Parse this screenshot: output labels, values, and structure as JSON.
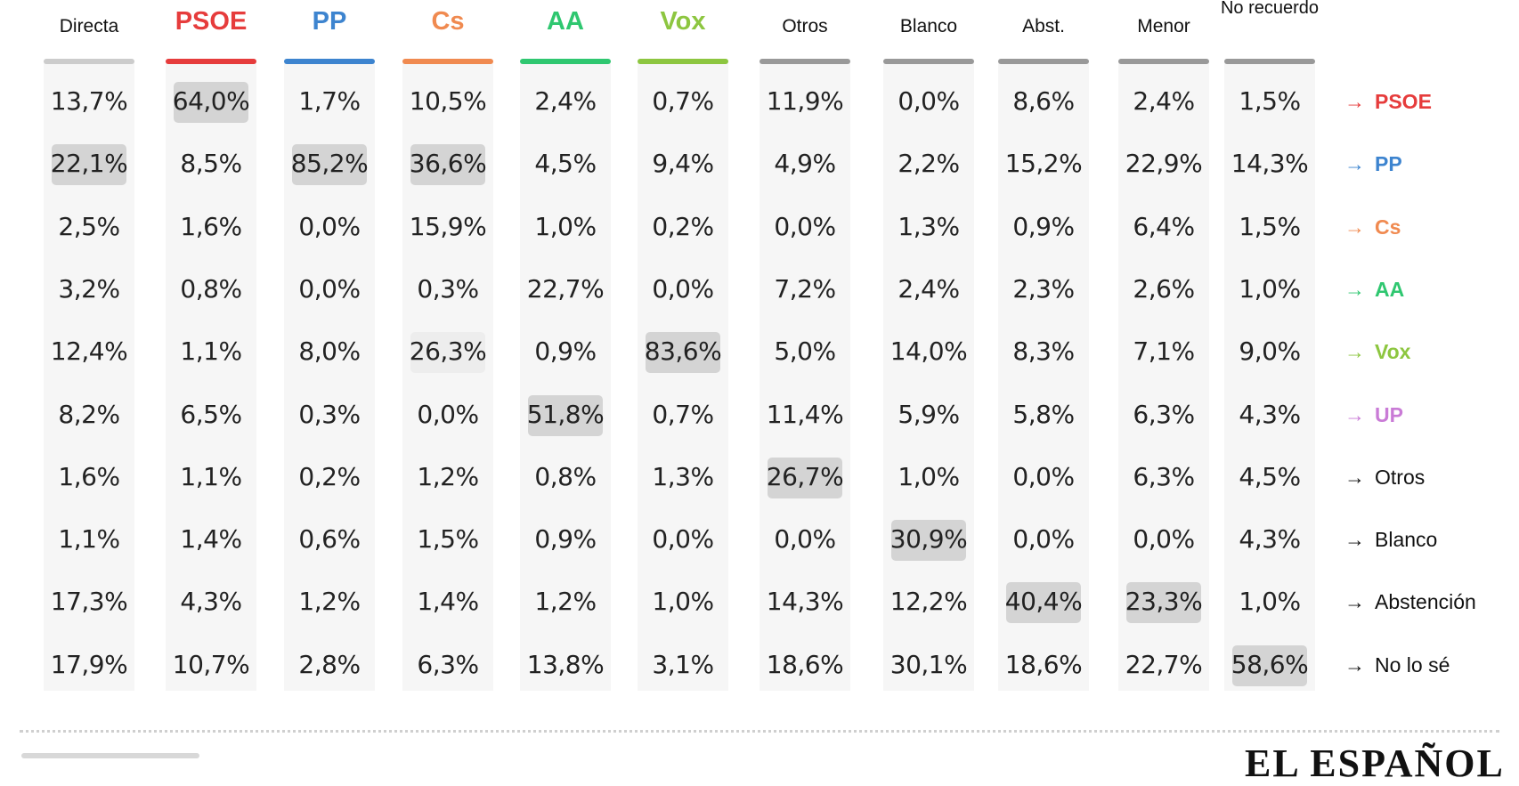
{
  "chart_data": {
    "type": "table",
    "columns": [
      {
        "label": "Directa",
        "color": "#cccccc",
        "style": "other"
      },
      {
        "label": "PSOE",
        "color": "#e63c3c",
        "style": "party"
      },
      {
        "label": "PP",
        "color": "#3d84cf",
        "style": "party"
      },
      {
        "label": "Cs",
        "color": "#f08a50",
        "style": "party"
      },
      {
        "label": "AA",
        "color": "#2fc770",
        "style": "party"
      },
      {
        "label": "Vox",
        "color": "#8dc640",
        "style": "party"
      },
      {
        "label": "Otros",
        "color": "#999999",
        "style": "other"
      },
      {
        "label": "Blanco",
        "color": "#999999",
        "style": "other"
      },
      {
        "label": "Abst.",
        "color": "#999999",
        "style": "other"
      },
      {
        "label": "Menor",
        "color": "#999999",
        "style": "other"
      },
      {
        "label": "No recuerdo",
        "color": "#999999",
        "style": "two"
      }
    ],
    "rows": [
      {
        "label": "PSOE",
        "color": "#e63c3c",
        "values": [
          "13,7%",
          "64,0%",
          "1,7%",
          "10,5%",
          "2,4%",
          "0,7%",
          "11,9%",
          "0,0%",
          "8,6%",
          "2,4%",
          "1,5%"
        ]
      },
      {
        "label": "PP",
        "color": "#3d84cf",
        "values": [
          "22,1%",
          "8,5%",
          "85,2%",
          "36,6%",
          "4,5%",
          "9,4%",
          "4,9%",
          "2,2%",
          "15,2%",
          "22,9%",
          "14,3%"
        ]
      },
      {
        "label": "Cs",
        "color": "#f08a50",
        "values": [
          "2,5%",
          "1,6%",
          "0,0%",
          "15,9%",
          "1,0%",
          "0,2%",
          "0,0%",
          "1,3%",
          "0,9%",
          "6,4%",
          "1,5%"
        ]
      },
      {
        "label": "AA",
        "color": "#2fc770",
        "values": [
          "3,2%",
          "0,8%",
          "0,0%",
          "0,3%",
          "22,7%",
          "0,0%",
          "7,2%",
          "2,4%",
          "2,3%",
          "2,6%",
          "1,0%"
        ]
      },
      {
        "label": "Vox",
        "color": "#8dc640",
        "values": [
          "12,4%",
          "1,1%",
          "8,0%",
          "26,3%",
          "0,9%",
          "83,6%",
          "5,0%",
          "14,0%",
          "8,3%",
          "7,1%",
          "9,0%"
        ]
      },
      {
        "label": "UP",
        "color": "#c97bd6",
        "values": [
          "8,2%",
          "6,5%",
          "0,3%",
          "0,0%",
          "51,8%",
          "0,7%",
          "11,4%",
          "5,9%",
          "5,8%",
          "6,3%",
          "4,3%"
        ]
      },
      {
        "label": "Otros",
        "color": "#111111",
        "values": [
          "1,6%",
          "1,1%",
          "0,2%",
          "1,2%",
          "0,8%",
          "1,3%",
          "26,7%",
          "1,0%",
          "0,0%",
          "6,3%",
          "4,5%"
        ]
      },
      {
        "label": "Blanco",
        "color": "#111111",
        "values": [
          "1,1%",
          "1,4%",
          "0,6%",
          "1,5%",
          "0,9%",
          "0,0%",
          "0,0%",
          "30,9%",
          "0,0%",
          "0,0%",
          "4,3%"
        ]
      },
      {
        "label": "Abstención",
        "color": "#111111",
        "values": [
          "17,3%",
          "4,3%",
          "1,2%",
          "1,4%",
          "1,2%",
          "1,0%",
          "14,3%",
          "12,2%",
          "40,4%",
          "23,3%",
          "1,0%"
        ]
      },
      {
        "label": "No lo sé",
        "color": "#111111",
        "values": [
          "17,9%",
          "10,7%",
          "2,8%",
          "6,3%",
          "13,8%",
          "3,1%",
          "18,6%",
          "30,1%",
          "18,6%",
          "22,7%",
          "58,6%"
        ]
      }
    ],
    "highlights": [
      {
        "row": 0,
        "col": 1,
        "level": "strong"
      },
      {
        "row": 1,
        "col": 0,
        "level": "strong"
      },
      {
        "row": 1,
        "col": 2,
        "level": "strong"
      },
      {
        "row": 1,
        "col": 3,
        "level": "strong"
      },
      {
        "row": 4,
        "col": 3,
        "level": "light"
      },
      {
        "row": 4,
        "col": 5,
        "level": "strong"
      },
      {
        "row": 5,
        "col": 4,
        "level": "strong"
      },
      {
        "row": 6,
        "col": 6,
        "level": "strong"
      },
      {
        "row": 7,
        "col": 7,
        "level": "strong"
      },
      {
        "row": 8,
        "col": 8,
        "level": "strong"
      },
      {
        "row": 8,
        "col": 9,
        "level": "strong"
      },
      {
        "row": 9,
        "col": 10,
        "level": "strong"
      }
    ],
    "arrow_glyph": "→"
  },
  "footer": {
    "logo": "EL ESPAÑOL"
  }
}
